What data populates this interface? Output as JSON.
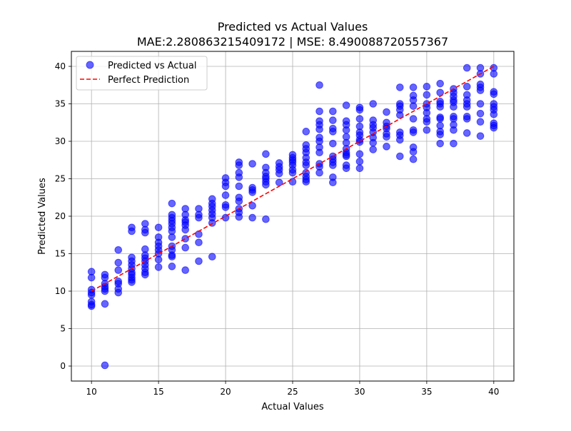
{
  "chart_data": {
    "type": "scatter",
    "title": "Predicted vs Actual Values",
    "subtitle": "MAE:2.280863215409172 | MSE: 8.490088720557367",
    "xlabel": "Actual Values",
    "ylabel": "Predicted Values",
    "xlim": [
      8.5,
      41.5
    ],
    "ylim": [
      -2,
      42
    ],
    "xticks": [
      10,
      15,
      20,
      25,
      30,
      35,
      40
    ],
    "yticks": [
      0,
      5,
      10,
      15,
      20,
      25,
      30,
      35,
      40
    ],
    "grid": true,
    "legend_position": "top-left",
    "colors": {
      "points": "#0000ff",
      "line": "#ff0000"
    },
    "series": [
      {
        "name": "Predicted vs Actual",
        "kind": "scatter",
        "points": [
          [
            10,
            12.6
          ],
          [
            10,
            11.8
          ],
          [
            10,
            10.2
          ],
          [
            10,
            9.8
          ],
          [
            10,
            9.5
          ],
          [
            10,
            8.6
          ],
          [
            10,
            8.2
          ],
          [
            10,
            8.0
          ],
          [
            11,
            12.2
          ],
          [
            11,
            11.8
          ],
          [
            11,
            11.0
          ],
          [
            11,
            10.6
          ],
          [
            11,
            10.3
          ],
          [
            11,
            10.0
          ],
          [
            11,
            8.3
          ],
          [
            11,
            0.1
          ],
          [
            12,
            15.5
          ],
          [
            12,
            13.8
          ],
          [
            12,
            12.8
          ],
          [
            12,
            11.3
          ],
          [
            12,
            11.0
          ],
          [
            12,
            10.3
          ],
          [
            12,
            9.8
          ],
          [
            13,
            18.5
          ],
          [
            13,
            18.0
          ],
          [
            13,
            14.5
          ],
          [
            13,
            14.0
          ],
          [
            13,
            13.5
          ],
          [
            13,
            13.0
          ],
          [
            13,
            12.5
          ],
          [
            13,
            12.2
          ],
          [
            13,
            11.8
          ],
          [
            13,
            11.5
          ],
          [
            13,
            11.2
          ],
          [
            14,
            19.0
          ],
          [
            14,
            18.2
          ],
          [
            14,
            17.8
          ],
          [
            14,
            15.6
          ],
          [
            14,
            14.8
          ],
          [
            14,
            14.4
          ],
          [
            14,
            14.0
          ],
          [
            14,
            13.5
          ],
          [
            14,
            13.0
          ],
          [
            14,
            12.5
          ],
          [
            14,
            12.2
          ],
          [
            15,
            18.5
          ],
          [
            15,
            17.2
          ],
          [
            15,
            16.5
          ],
          [
            15,
            16.0
          ],
          [
            15,
            15.5
          ],
          [
            15,
            15.0
          ],
          [
            15,
            14.2
          ],
          [
            15,
            13.2
          ],
          [
            16,
            21.7
          ],
          [
            16,
            20.2
          ],
          [
            16,
            19.8
          ],
          [
            16,
            19.4
          ],
          [
            16,
            19.0
          ],
          [
            16,
            18.5
          ],
          [
            16,
            18.0
          ],
          [
            16,
            17.2
          ],
          [
            16,
            16.0
          ],
          [
            16,
            15.5
          ],
          [
            16,
            14.8
          ],
          [
            16,
            14.6
          ],
          [
            16,
            13.3
          ],
          [
            17,
            21.0
          ],
          [
            17,
            20.2
          ],
          [
            17,
            19.5
          ],
          [
            17,
            19.2
          ],
          [
            17,
            18.8
          ],
          [
            17,
            18.2
          ],
          [
            17,
            17.0
          ],
          [
            17,
            15.8
          ],
          [
            17,
            12.8
          ],
          [
            18,
            21.0
          ],
          [
            18,
            20.2
          ],
          [
            18,
            19.8
          ],
          [
            18,
            17.6
          ],
          [
            18,
            16.5
          ],
          [
            18,
            14.0
          ],
          [
            19,
            22.3
          ],
          [
            19,
            21.7
          ],
          [
            19,
            21.3
          ],
          [
            19,
            20.8
          ],
          [
            19,
            20.3
          ],
          [
            19,
            19.8
          ],
          [
            19,
            19.1
          ],
          [
            19,
            14.6
          ],
          [
            20,
            25.1
          ],
          [
            20,
            24.5
          ],
          [
            20,
            24.0
          ],
          [
            20,
            22.8
          ],
          [
            20,
            21.5
          ],
          [
            20,
            21.2
          ],
          [
            20,
            19.8
          ],
          [
            21,
            27.2
          ],
          [
            21,
            26.8
          ],
          [
            21,
            25.8
          ],
          [
            21,
            25.2
          ],
          [
            21,
            24.0
          ],
          [
            21,
            22.5
          ],
          [
            21,
            22.0
          ],
          [
            21,
            21.0
          ],
          [
            21,
            20.5
          ],
          [
            21,
            19.9
          ],
          [
            22,
            27.0
          ],
          [
            22,
            23.8
          ],
          [
            22,
            23.5
          ],
          [
            22,
            23.2
          ],
          [
            22,
            21.4
          ],
          [
            22,
            19.8
          ],
          [
            23,
            28.3
          ],
          [
            23,
            26.5
          ],
          [
            23,
            25.8
          ],
          [
            23,
            25.3
          ],
          [
            23,
            25.0
          ],
          [
            23,
            24.6
          ],
          [
            23,
            24.2
          ],
          [
            23,
            19.6
          ],
          [
            24,
            27.1
          ],
          [
            24,
            26.6
          ],
          [
            24,
            26.2
          ],
          [
            24,
            25.7
          ],
          [
            24,
            24.5
          ],
          [
            25,
            28.2
          ],
          [
            25,
            27.8
          ],
          [
            25,
            27.5
          ],
          [
            25,
            27.2
          ],
          [
            25,
            26.8
          ],
          [
            25,
            26.2
          ],
          [
            25,
            25.8
          ],
          [
            25,
            24.6
          ],
          [
            26,
            31.3
          ],
          [
            26,
            29.5
          ],
          [
            26,
            29.0
          ],
          [
            26,
            28.5
          ],
          [
            26,
            27.8
          ],
          [
            26,
            27.2
          ],
          [
            26,
            26.8
          ],
          [
            26,
            25.8
          ],
          [
            26,
            25.3
          ],
          [
            26,
            24.9
          ],
          [
            26,
            24.6
          ],
          [
            27,
            37.5
          ],
          [
            27,
            34.0
          ],
          [
            27,
            32.7
          ],
          [
            27,
            32.2
          ],
          [
            27,
            31.6
          ],
          [
            27,
            30.5
          ],
          [
            27,
            30.0
          ],
          [
            27,
            29.2
          ],
          [
            27,
            28.5
          ],
          [
            27,
            27.0
          ],
          [
            27,
            26.6
          ],
          [
            27,
            25.8
          ],
          [
            28,
            34.0
          ],
          [
            28,
            32.8
          ],
          [
            28,
            31.7
          ],
          [
            28,
            31.3
          ],
          [
            28,
            29.7
          ],
          [
            28,
            28.0
          ],
          [
            28,
            27.6
          ],
          [
            28,
            27.2
          ],
          [
            28,
            26.8
          ],
          [
            28,
            25.2
          ],
          [
            28,
            24.5
          ],
          [
            29,
            34.8
          ],
          [
            29,
            32.7
          ],
          [
            29,
            32.2
          ],
          [
            29,
            31.5
          ],
          [
            29,
            30.6
          ],
          [
            29,
            29.8
          ],
          [
            29,
            29.0
          ],
          [
            29,
            28.5
          ],
          [
            29,
            28.2
          ],
          [
            29,
            28.0
          ],
          [
            29,
            26.8
          ],
          [
            29,
            26.4
          ],
          [
            30,
            34.5
          ],
          [
            30,
            34.2
          ],
          [
            30,
            33.0
          ],
          [
            30,
            32.0
          ],
          [
            30,
            31.2
          ],
          [
            30,
            30.8
          ],
          [
            30,
            30.2
          ],
          [
            30,
            29.9
          ],
          [
            30,
            28.3
          ],
          [
            30,
            27.3
          ],
          [
            30,
            26.4
          ],
          [
            31,
            35.0
          ],
          [
            31,
            32.8
          ],
          [
            31,
            32.2
          ],
          [
            31,
            31.8
          ],
          [
            31,
            31.2
          ],
          [
            31,
            30.5
          ],
          [
            31,
            29.8
          ],
          [
            31,
            28.9
          ],
          [
            32,
            33.9
          ],
          [
            32,
            32.5
          ],
          [
            32,
            32.0
          ],
          [
            32,
            31.7
          ],
          [
            32,
            31.0
          ],
          [
            32,
            30.6
          ],
          [
            32,
            29.3
          ],
          [
            33,
            37.2
          ],
          [
            33,
            35.0
          ],
          [
            33,
            34.7
          ],
          [
            33,
            34.2
          ],
          [
            33,
            33.5
          ],
          [
            33,
            31.2
          ],
          [
            33,
            30.8
          ],
          [
            33,
            30.2
          ],
          [
            33,
            28.0
          ],
          [
            34,
            37.2
          ],
          [
            34,
            36.1
          ],
          [
            34,
            35.5
          ],
          [
            34,
            34.7
          ],
          [
            34,
            33.0
          ],
          [
            34,
            31.5
          ],
          [
            34,
            31.2
          ],
          [
            34,
            29.2
          ],
          [
            34,
            28.6
          ],
          [
            34,
            27.6
          ],
          [
            35,
            37.3
          ],
          [
            35,
            36.2
          ],
          [
            35,
            35.0
          ],
          [
            35,
            34.5
          ],
          [
            35,
            33.8
          ],
          [
            35,
            33.0
          ],
          [
            35,
            32.6
          ],
          [
            35,
            31.5
          ],
          [
            36,
            37.7
          ],
          [
            36,
            36.5
          ],
          [
            36,
            35.3
          ],
          [
            36,
            35.0
          ],
          [
            36,
            34.6
          ],
          [
            36,
            33.2
          ],
          [
            36,
            33.0
          ],
          [
            36,
            32.1
          ],
          [
            36,
            31.3
          ],
          [
            36,
            30.9
          ],
          [
            36,
            29.7
          ],
          [
            37,
            37.0
          ],
          [
            37,
            36.5
          ],
          [
            37,
            36.0
          ],
          [
            37,
            35.5
          ],
          [
            37,
            35.2
          ],
          [
            37,
            34.6
          ],
          [
            37,
            33.3
          ],
          [
            37,
            33.0
          ],
          [
            37,
            32.2
          ],
          [
            37,
            31.5
          ],
          [
            37,
            29.7
          ],
          [
            38,
            39.8
          ],
          [
            38,
            37.3
          ],
          [
            38,
            36.2
          ],
          [
            38,
            35.5
          ],
          [
            38,
            35.0
          ],
          [
            38,
            34.6
          ],
          [
            38,
            33.3
          ],
          [
            38,
            33.0
          ],
          [
            38,
            31.1
          ],
          [
            39,
            39.8
          ],
          [
            39,
            39.0
          ],
          [
            39,
            37.6
          ],
          [
            39,
            37.2
          ],
          [
            39,
            36.8
          ],
          [
            39,
            35.0
          ],
          [
            39,
            33.7
          ],
          [
            39,
            32.6
          ],
          [
            39,
            30.7
          ],
          [
            40,
            39.8
          ],
          [
            40,
            39.0
          ],
          [
            40,
            36.6
          ],
          [
            40,
            36.3
          ],
          [
            40,
            35.0
          ],
          [
            40,
            34.6
          ],
          [
            40,
            34.2
          ],
          [
            40,
            33.6
          ],
          [
            40,
            32.4
          ],
          [
            40,
            32.1
          ],
          [
            40,
            31.8
          ]
        ]
      },
      {
        "name": "Perfect Prediction",
        "kind": "line",
        "style": "dashed",
        "points": [
          [
            10,
            10
          ],
          [
            40,
            40
          ]
        ]
      }
    ]
  }
}
